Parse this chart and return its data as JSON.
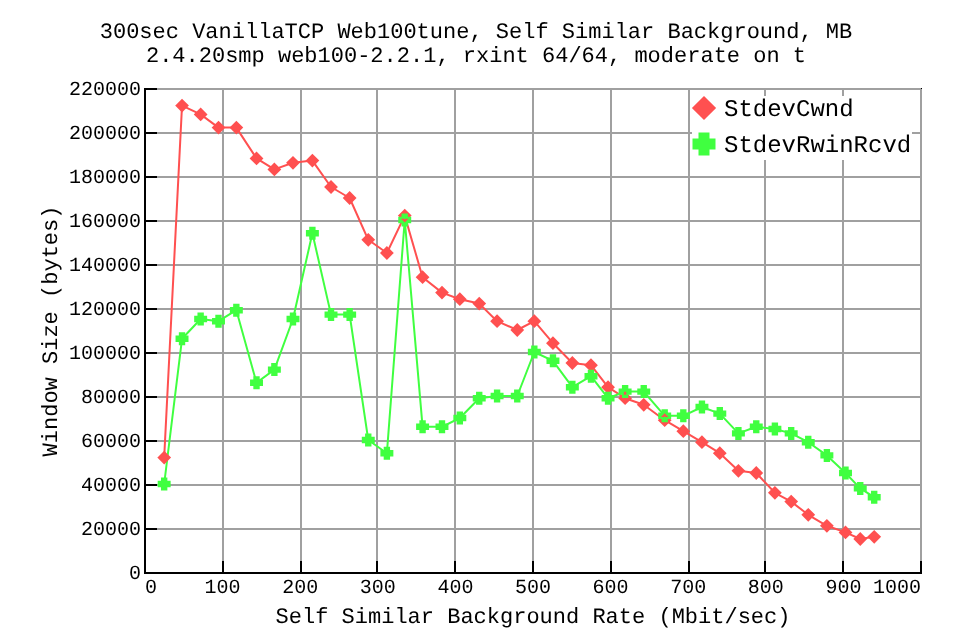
{
  "chart_data": {
    "type": "line",
    "title": [
      "300sec  VanillaTCP  Web100tune, Self Similar Background, MB",
      "2.4.20smp web100-2.2.1, rxint 64/64, moderate on t"
    ],
    "xlabel": "Self Similar Background Rate (Mbit/sec)",
    "ylabel": "Window Size (bytes)",
    "x": [
      26,
      49,
      73,
      96,
      119,
      145,
      168,
      192,
      217,
      241,
      265,
      289,
      313,
      336,
      359,
      384,
      407,
      432,
      455,
      481,
      503,
      527,
      552,
      576,
      598,
      620,
      644,
      671,
      695,
      719,
      742,
      766,
      789,
      813,
      834,
      856,
      880,
      904,
      923,
      941
    ],
    "series": [
      {
        "name": "StdevCwnd",
        "color": "#ff5050",
        "marker": "diamond",
        "values": [
          52000,
          212000,
          208000,
          202000,
          202000,
          188000,
          183000,
          186000,
          187000,
          175000,
          170000,
          151000,
          145000,
          162000,
          134000,
          127000,
          124000,
          122000,
          114000,
          110000,
          114000,
          104000,
          95000,
          94000,
          84000,
          79000,
          76000,
          69000,
          64000,
          59000,
          54000,
          46000,
          45000,
          36000,
          32000,
          26000,
          21000,
          18000,
          15000,
          16000
        ]
      },
      {
        "name": "StdevRwinRcvd",
        "color": "#40ff40",
        "marker": "cross",
        "values": [
          40000,
          106000,
          115000,
          114000,
          119000,
          86000,
          92000,
          115000,
          154000,
          117000,
          117000,
          60000,
          54000,
          160000,
          66000,
          66000,
          70000,
          79000,
          80000,
          80000,
          100000,
          96000,
          84000,
          89000,
          79000,
          82000,
          82000,
          71000,
          71000,
          75000,
          72000,
          63000,
          66000,
          65000,
          63000,
          59000,
          53000,
          45000,
          38000,
          34000
        ]
      }
    ],
    "xlim": [
      0,
      1000
    ],
    "xticks": [
      0,
      100,
      200,
      300,
      400,
      500,
      600,
      700,
      800,
      900,
      1000
    ],
    "ylim": [
      0,
      220000
    ],
    "yticks": [
      0,
      20000,
      40000,
      60000,
      80000,
      100000,
      120000,
      140000,
      160000,
      180000,
      200000,
      220000
    ],
    "grid": true,
    "legend": "top right"
  }
}
